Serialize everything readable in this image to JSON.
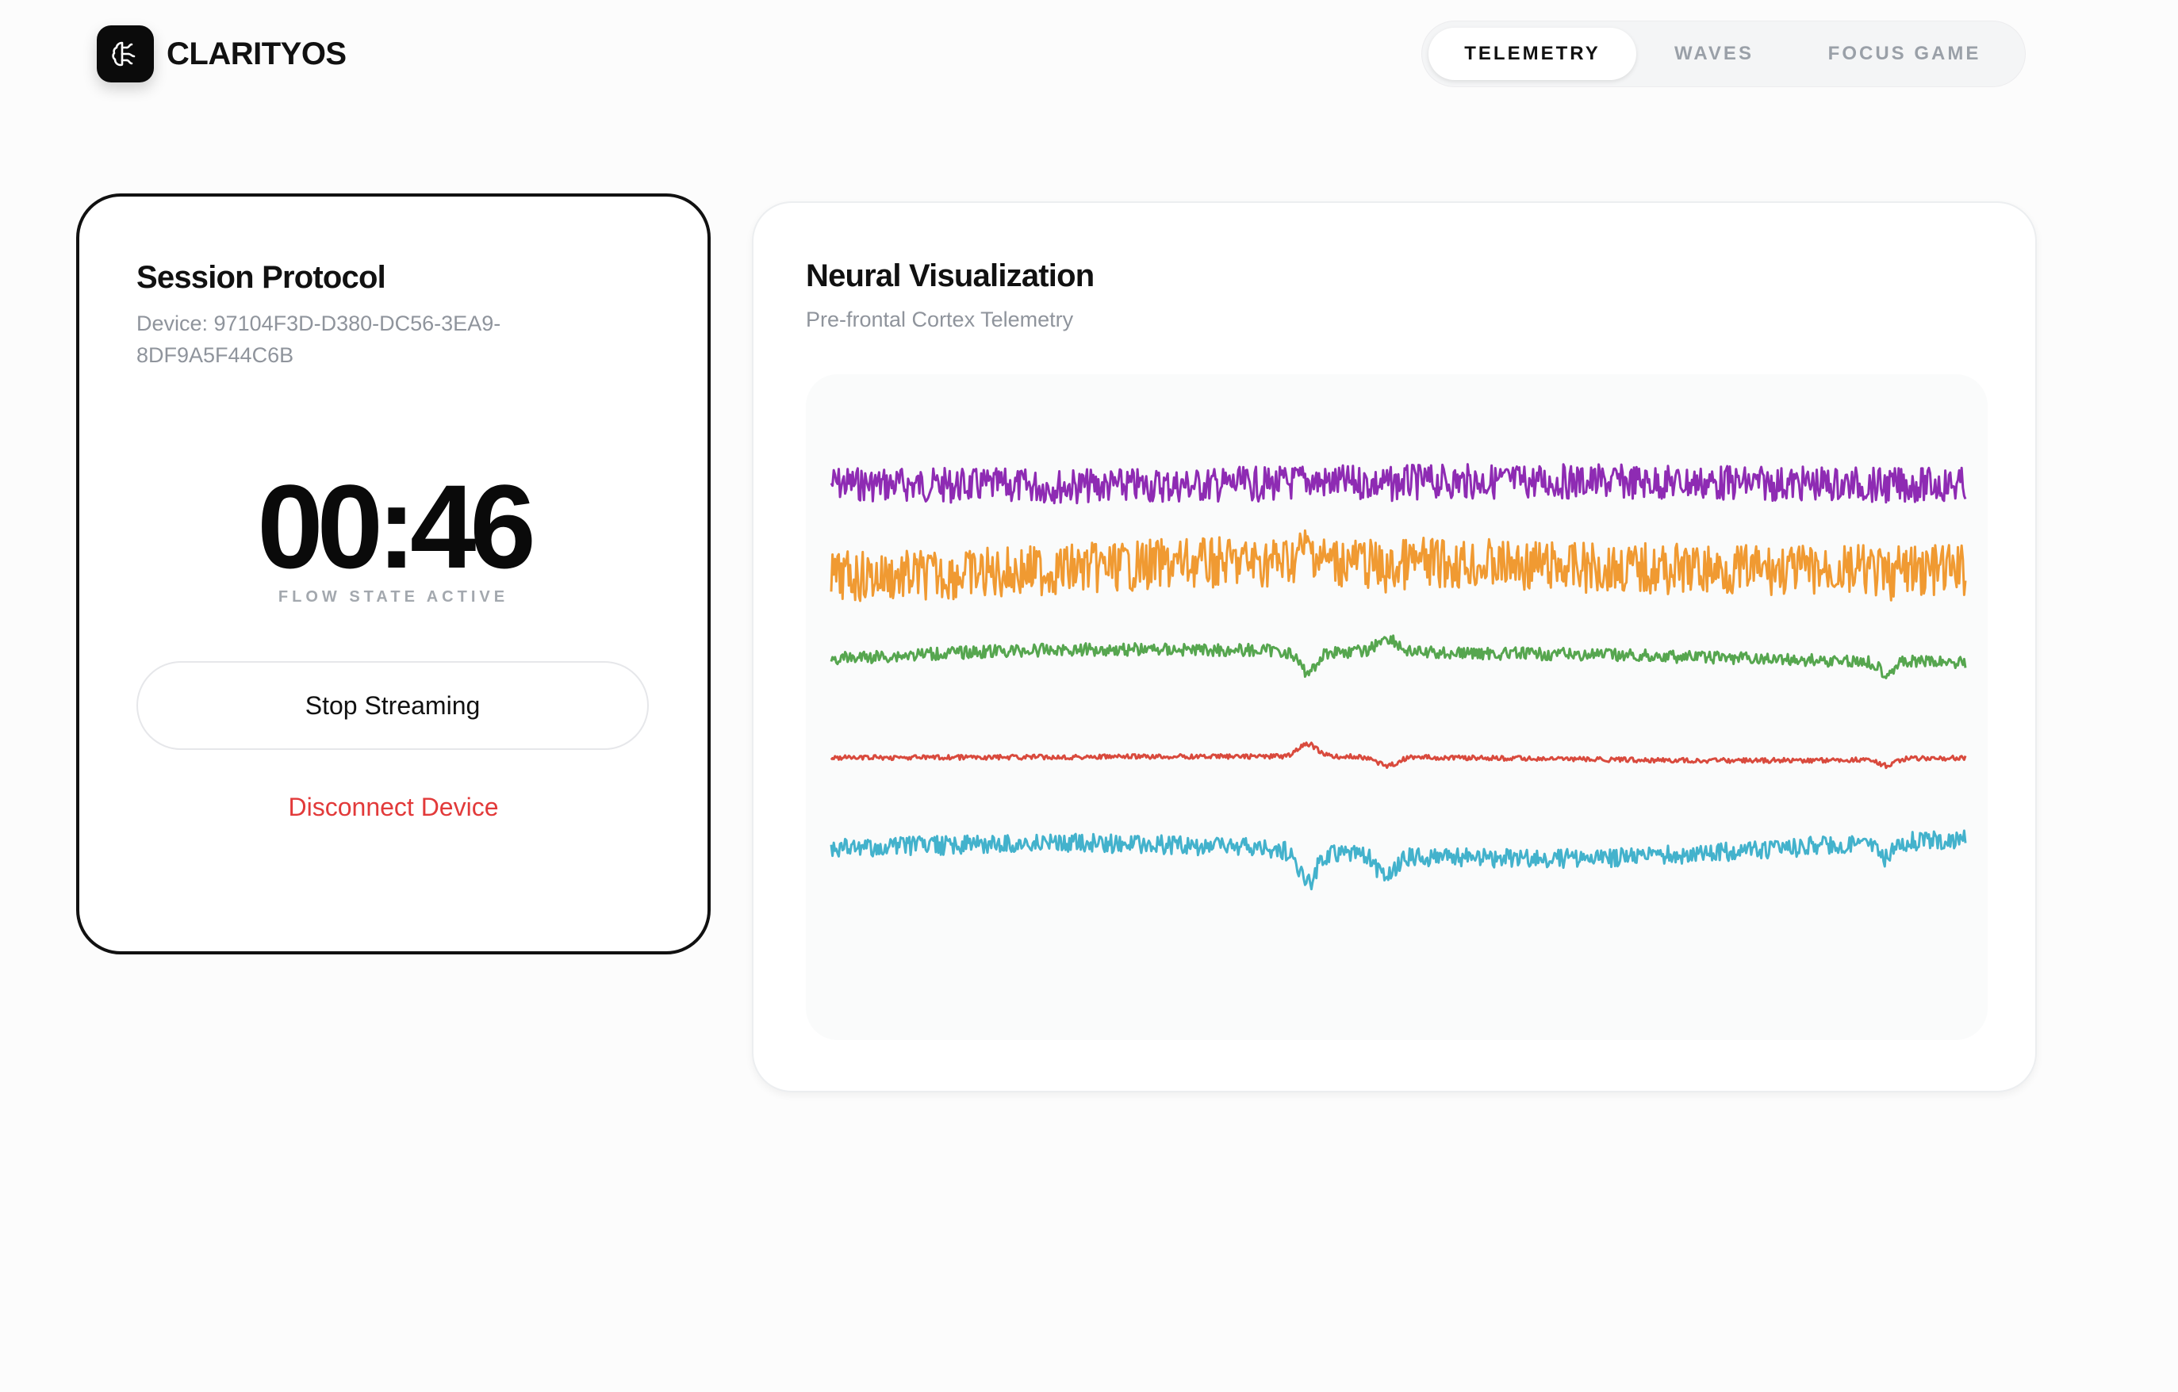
{
  "brand": {
    "name": "CLARITYOS",
    "logo_icon": "brain-icon"
  },
  "nav": {
    "tabs": [
      "TELEMETRY",
      "WAVES",
      "FOCUS GAME"
    ],
    "active": "TELEMETRY"
  },
  "session": {
    "title": "Session Protocol",
    "device": "Device: 97104F3D-D380-DC56-3EA9-8DF9A5F44C6B",
    "timer": "00:46",
    "status": "FLOW STATE ACTIVE",
    "stop_label": "Stop Streaming",
    "disconnect_label": "Disconnect Device"
  },
  "visualization": {
    "title": "Neural Visualization",
    "subtitle": "Pre-frontal Cortex Telemetry",
    "channels": [
      {
        "color": "#8e2bb3",
        "amplitude": 22,
        "drift": 2,
        "event": 4
      },
      {
        "color": "#f09a32",
        "amplitude": 32,
        "drift": 8,
        "event": 16
      },
      {
        "color": "#56a64f",
        "amplitude": 8,
        "drift": 12,
        "event": 26
      },
      {
        "color": "#d94a3d",
        "amplitude": 3,
        "drift": 3,
        "event": 16
      },
      {
        "color": "#43b2cc",
        "amplitude": 12,
        "drift": 8,
        "event": 40
      }
    ]
  }
}
